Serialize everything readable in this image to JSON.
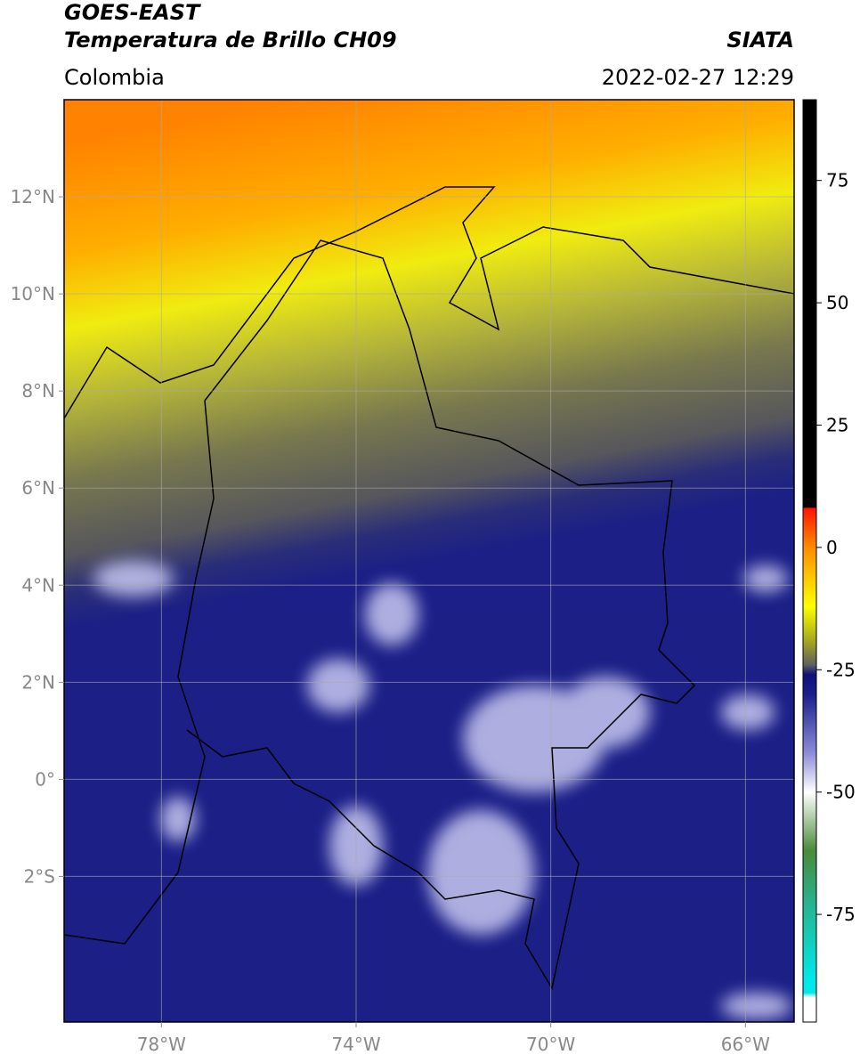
{
  "header": {
    "title": "GOES-EAST",
    "subtitle": "Temperatura de Brillo CH09",
    "source": "SIATA",
    "region": "Colombia",
    "datetime": "2022-02-27 12:29"
  },
  "map": {
    "xlim": [
      -80,
      -65
    ],
    "ylim": [
      -5,
      14
    ],
    "xticks": [
      {
        "value": -78,
        "label": "78°W"
      },
      {
        "value": -74,
        "label": "74°W"
      },
      {
        "value": -70,
        "label": "70°W"
      },
      {
        "value": -66,
        "label": "66°W"
      }
    ],
    "yticks": [
      {
        "value": 12,
        "label": "12°N"
      },
      {
        "value": 10,
        "label": "10°N"
      },
      {
        "value": 8,
        "label": "8°N"
      },
      {
        "value": 6,
        "label": "6°N"
      },
      {
        "value": 4,
        "label": "4°N"
      },
      {
        "value": 2,
        "label": "2°N"
      },
      {
        "value": 0,
        "label": "0°"
      },
      {
        "value": -2,
        "label": "2°S"
      }
    ],
    "grid": true
  },
  "colorbar": {
    "lim": [
      -97,
      91.5
    ],
    "ticks": [
      75,
      50,
      25,
      0,
      -25,
      -50,
      -75
    ],
    "colormap": [
      [
        91.5,
        "#000000"
      ],
      [
        8.2,
        "#000000"
      ],
      [
        8,
        "#ff1500"
      ],
      [
        0,
        "#ff8c00"
      ],
      [
        -12,
        "#ffff00"
      ],
      [
        -19,
        "#a8a820"
      ],
      [
        -24,
        "#606060"
      ],
      [
        -26,
        "#10107a"
      ],
      [
        -30,
        "#1a1f8c"
      ],
      [
        -42,
        "#8c8cd8"
      ],
      [
        -50,
        "#ffffff"
      ],
      [
        -62,
        "#4a8a3a"
      ],
      [
        -72,
        "#2ab08a"
      ],
      [
        -88,
        "#00e8e8"
      ],
      [
        -91,
        "#00e8e8"
      ],
      [
        -92,
        "#ffffff"
      ],
      [
        -97,
        "#ffffff"
      ]
    ]
  }
}
